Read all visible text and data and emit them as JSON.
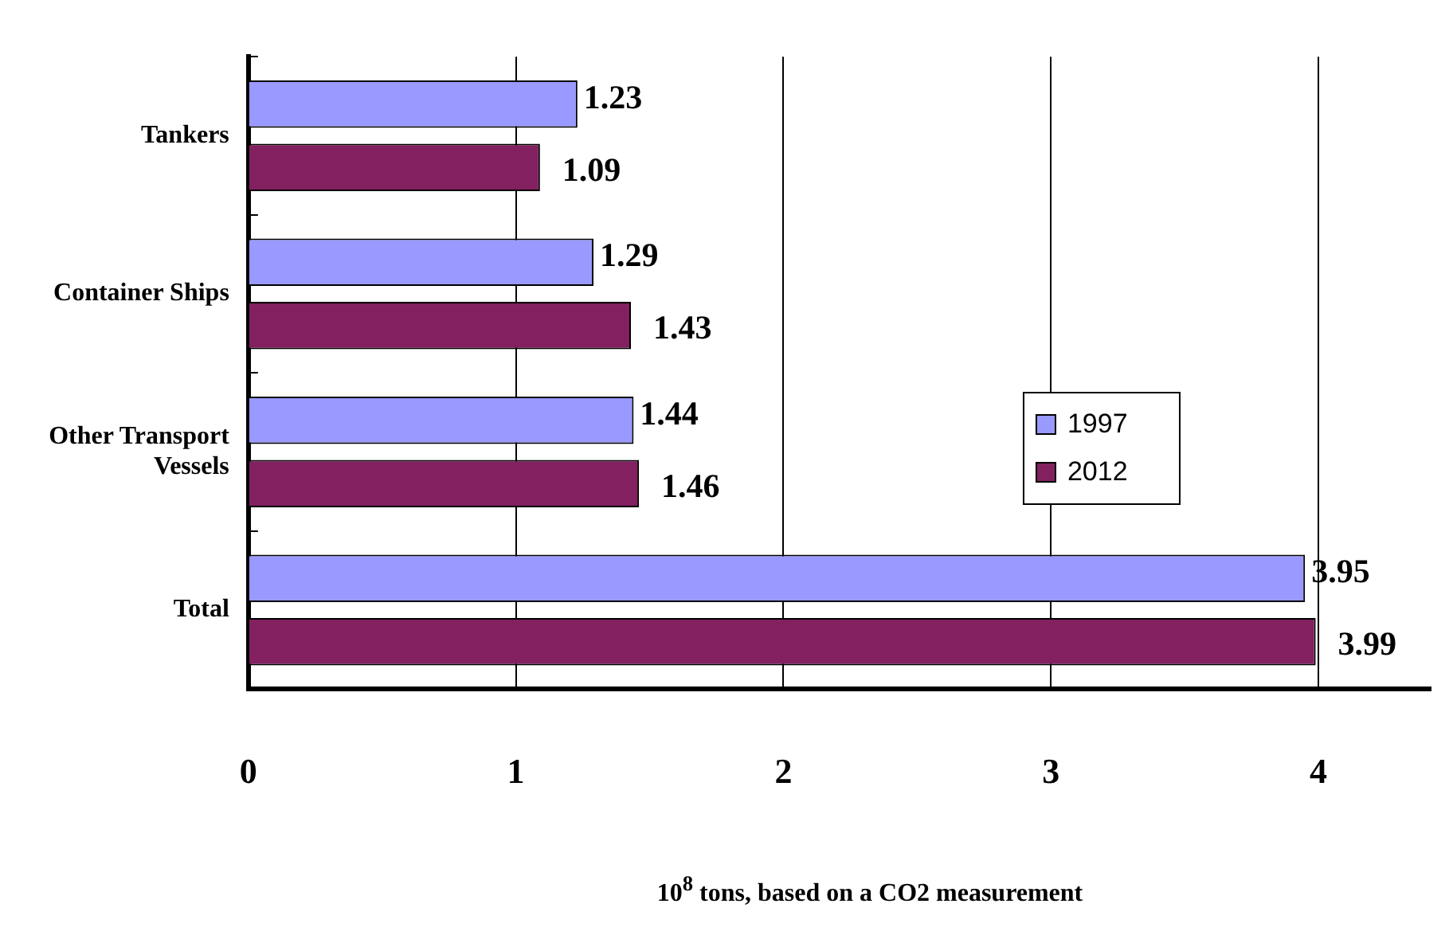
{
  "chart_data": {
    "type": "bar",
    "orientation": "horizontal",
    "xlabel": "10$^{8}$ tons, based on a CO2 measurement",
    "categories": [
      "Tankers",
      "Container Ships",
      "Other Transport Vessels",
      "Total"
    ],
    "series": [
      {
        "name": "1997",
        "color": "#9999ff",
        "values": [
          1.23,
          1.29,
          1.44,
          3.95
        ]
      },
      {
        "name": "2012",
        "color": "#822060",
        "values": [
          1.09,
          1.43,
          1.46,
          3.99
        ]
      }
    ],
    "xlim": [
      0,
      4.42
    ],
    "xticks": [
      0,
      1,
      2,
      3,
      4
    ],
    "grid": "x",
    "legend": "right",
    "data_labels": true
  }
}
